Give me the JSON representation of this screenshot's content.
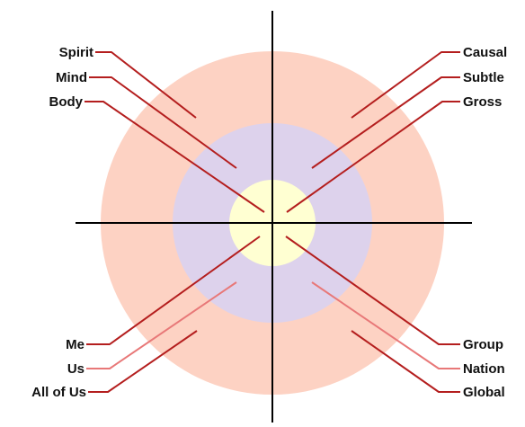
{
  "colors": {
    "outer_ring": "#fdd2c3",
    "middle_ring": "#ddd2ec",
    "inner_core": "#ffffd2",
    "axis": "#000000",
    "leader_red": "#b41e1e",
    "leader_pink": "#e87878",
    "text": "#111111"
  },
  "labels": {
    "spirit": "Spirit",
    "mind": "Mind",
    "body": "Body",
    "causal": "Causal",
    "subtle": "Subtle",
    "gross": "Gross",
    "me": "Me",
    "us": "Us",
    "all_of_us": "All of Us",
    "group": "Group",
    "nation": "Nation",
    "global": "Global"
  }
}
